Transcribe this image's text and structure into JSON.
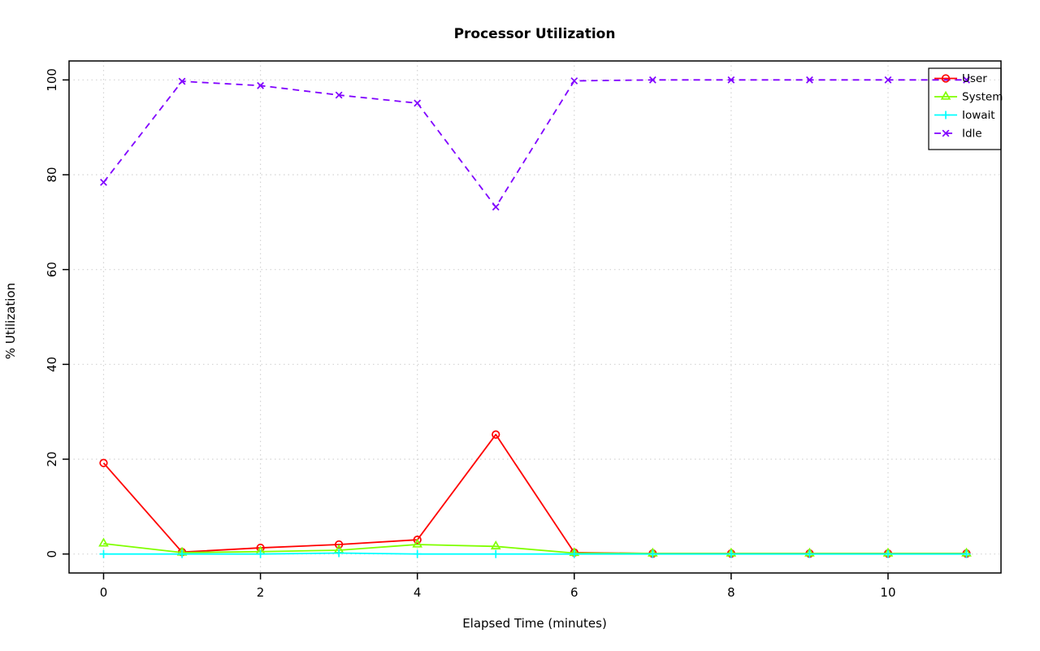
{
  "chart_data": {
    "type": "line",
    "title": "Processor Utilization",
    "xlabel": "Elapsed Time (minutes)",
    "ylabel": "% Utilization",
    "xlim": [
      0,
      11
    ],
    "ylim": [
      0,
      100
    ],
    "x_ticks": [
      0,
      2,
      4,
      6,
      8,
      10
    ],
    "y_ticks": [
      0,
      20,
      40,
      60,
      80,
      100
    ],
    "grid": {
      "on": true,
      "color": "#d3d3d3",
      "style": "dotted"
    },
    "legend": {
      "position": "top-right",
      "entries": [
        "User",
        "System",
        "Iowait",
        "Idle"
      ]
    },
    "x": [
      0,
      1,
      2,
      3,
      4,
      5,
      6,
      7,
      8,
      9,
      10,
      11
    ],
    "series": [
      {
        "name": "User",
        "color": "#FF0000",
        "marker": "circle",
        "line": "solid",
        "values": [
          19.2,
          0.4,
          1.3,
          2.0,
          3.0,
          25.2,
          0.3,
          0.1,
          0.1,
          0.1,
          0.1,
          0.1
        ]
      },
      {
        "name": "System",
        "color": "#80FF00",
        "marker": "triangle",
        "line": "solid",
        "values": [
          2.2,
          0.3,
          0.5,
          0.8,
          2.0,
          1.6,
          0.2,
          0.1,
          0.1,
          0.1,
          0.1,
          0.1
        ]
      },
      {
        "name": "Iowait",
        "color": "#00FFFF",
        "marker": "plus",
        "line": "solid",
        "values": [
          0.0,
          0.0,
          0.0,
          0.2,
          0.0,
          0.0,
          0.0,
          0.0,
          0.0,
          0.0,
          0.0,
          0.0
        ]
      },
      {
        "name": "Idle",
        "color": "#8000FF",
        "marker": "x",
        "line": "dashed",
        "values": [
          78.4,
          99.7,
          98.8,
          96.8,
          95.1,
          73.2,
          99.8,
          100,
          100,
          100,
          100,
          100
        ]
      }
    ]
  }
}
